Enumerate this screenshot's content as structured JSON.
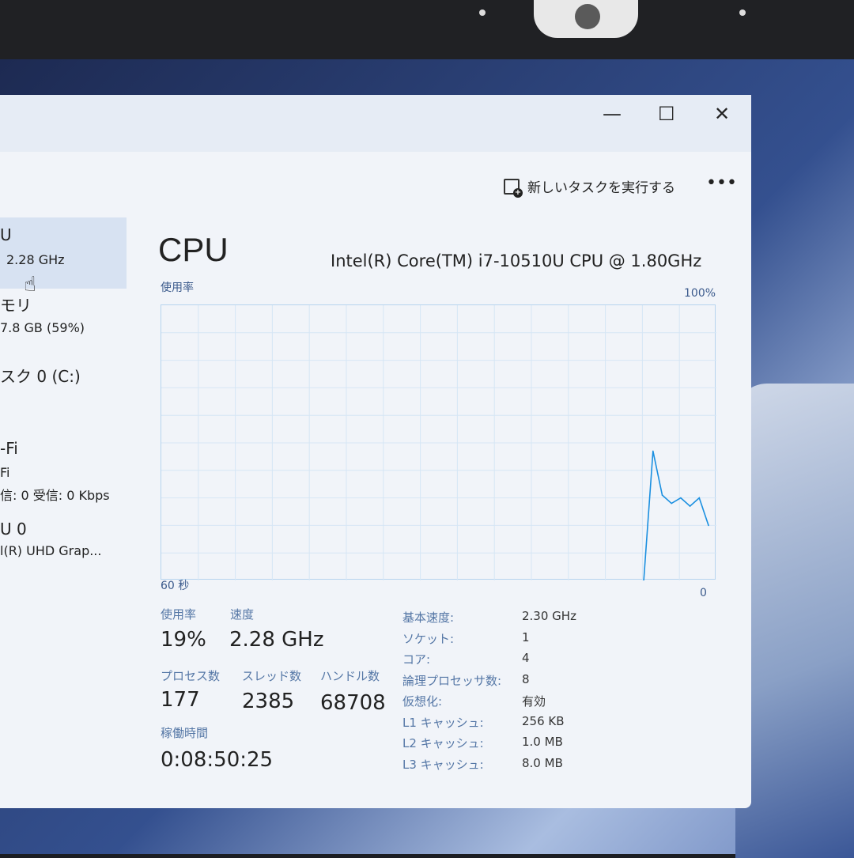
{
  "window": {
    "minimize": "—",
    "maximize": "☐",
    "close": "✕"
  },
  "toolbar": {
    "run_new_task": "新しいタスクを実行する",
    "more": "•••",
    "run_icon": "new-task-icon"
  },
  "sidebar": [
    {
      "title": "U",
      "sub": "2.28 GHz",
      "selected": true
    },
    {
      "title": "モリ",
      "sub": "7.8 GB (59%)"
    },
    {
      "title": "スク 0 (C:)",
      "sub": ""
    },
    {
      "title": "-Fi",
      "sub": "Fi",
      "sub2": "信: 0 受信: 0 Kbps"
    },
    {
      "title": "U 0",
      "sub": "l(R) UHD Grap..."
    }
  ],
  "main": {
    "title": "CPU",
    "model": "Intel(R) Core(TM) i7-10510U CPU @ 1.80GHz",
    "graph_label": "使用率",
    "graph_max": "100%",
    "graph_min": "0",
    "graph_time": "60 秒",
    "color": "#1a8fe0"
  },
  "chart_data": {
    "type": "line",
    "ylim": [
      0,
      100
    ],
    "xlim_seconds": 60,
    "values_recent_per_second": [
      0,
      47,
      31,
      28,
      30,
      27,
      30,
      20
    ]
  },
  "stats": {
    "usage_label": "使用率",
    "usage": "19%",
    "speed_label": "速度",
    "speed": "2.28 GHz",
    "processes_label": "プロセス数",
    "processes": "177",
    "threads_label": "スレッド数",
    "threads": "2385",
    "handles_label": "ハンドル数",
    "handles": "68708",
    "uptime_label": "稼働時間",
    "uptime": "0:08:50:25"
  },
  "details": [
    {
      "k": "基本速度:",
      "v": "2.30 GHz"
    },
    {
      "k": "ソケット:",
      "v": "1"
    },
    {
      "k": "コア:",
      "v": "4"
    },
    {
      "k": "論理プロセッサ数:",
      "v": "8"
    },
    {
      "k": "仮想化:",
      "v": "有効"
    },
    {
      "k": "L1 キャッシュ:",
      "v": "256 KB"
    },
    {
      "k": "L2 キャッシュ:",
      "v": "1.0 MB"
    },
    {
      "k": "L3 キャッシュ:",
      "v": "8.0 MB"
    }
  ]
}
